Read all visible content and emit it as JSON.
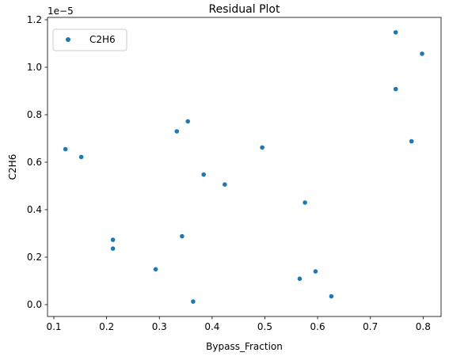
{
  "chart_data": {
    "type": "scatter",
    "title": "Residual Plot",
    "xlabel": "Bypass_Fraction",
    "ylabel": "C2H6",
    "y_scale_label": "1e−5",
    "xlim": [
      0.088,
      0.834
    ],
    "ylim": [
      -0.05,
      1.21
    ],
    "x_ticks": [
      0.1,
      0.2,
      0.3,
      0.4,
      0.5,
      0.6,
      0.7,
      0.8
    ],
    "x_tick_labels": [
      "0.1",
      "0.2",
      "0.3",
      "0.4",
      "0.5",
      "0.6",
      "0.7",
      "0.8"
    ],
    "y_ticks": [
      0.0,
      0.2,
      0.4,
      0.6,
      0.8,
      1.0,
      1.2
    ],
    "y_tick_labels": [
      "0.0",
      "0.2",
      "0.4",
      "0.6",
      "0.8",
      "1.0",
      "1.2"
    ],
    "grid": false,
    "legend_position": "upper-left",
    "series": [
      {
        "name": "C2H6",
        "color": "#1f77b4",
        "points": [
          {
            "x": 0.122,
            "y": 0.655
          },
          {
            "x": 0.152,
            "y": 0.622
          },
          {
            "x": 0.212,
            "y": 0.273
          },
          {
            "x": 0.212,
            "y": 0.236
          },
          {
            "x": 0.293,
            "y": 0.149
          },
          {
            "x": 0.333,
            "y": 0.73
          },
          {
            "x": 0.343,
            "y": 0.288
          },
          {
            "x": 0.354,
            "y": 0.772
          },
          {
            "x": 0.364,
            "y": 0.013
          },
          {
            "x": 0.384,
            "y": 0.548
          },
          {
            "x": 0.424,
            "y": 0.506
          },
          {
            "x": 0.495,
            "y": 0.662
          },
          {
            "x": 0.566,
            "y": 0.109
          },
          {
            "x": 0.576,
            "y": 0.43
          },
          {
            "x": 0.596,
            "y": 0.14
          },
          {
            "x": 0.626,
            "y": 0.035
          },
          {
            "x": 0.748,
            "y": 1.147
          },
          {
            "x": 0.748,
            "y": 0.908
          },
          {
            "x": 0.778,
            "y": 0.688
          },
          {
            "x": 0.798,
            "y": 1.057
          }
        ]
      }
    ]
  }
}
